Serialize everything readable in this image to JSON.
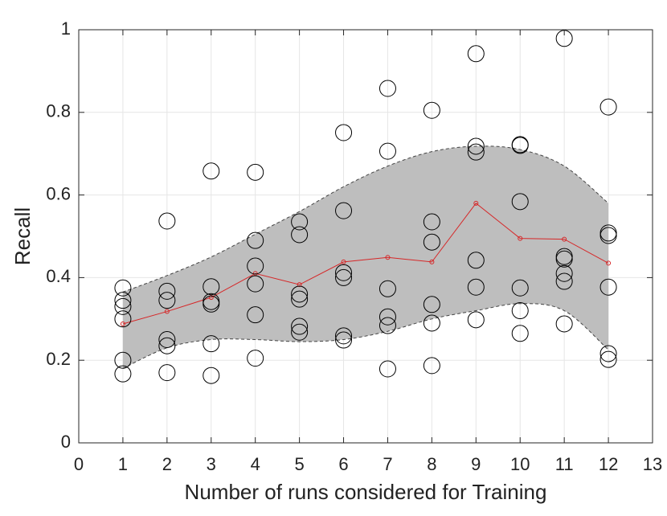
{
  "chart_data": {
    "type": "scatter",
    "x_label": "Number of runs considered for Training",
    "y_label": "Recall",
    "xlim": [
      0,
      13
    ],
    "ylim": [
      0,
      1
    ],
    "xticks": [
      0,
      1,
      2,
      3,
      4,
      5,
      6,
      7,
      8,
      9,
      10,
      11,
      12,
      13
    ],
    "yticks": [
      0,
      0.2,
      0.4,
      0.6,
      0.8,
      1
    ],
    "grid": true,
    "points": {
      "color": "#000000",
      "x": [
        1,
        1,
        1,
        1,
        1,
        1,
        2,
        2,
        2,
        2,
        2,
        2,
        3,
        3,
        3,
        3,
        3,
        3,
        4,
        4,
        4,
        4,
        4,
        4,
        5,
        5,
        5,
        5,
        5,
        5,
        6,
        6,
        6,
        6,
        6,
        6,
        7,
        7,
        7,
        7,
        7,
        7,
        8,
        8,
        8,
        8,
        8,
        8,
        9,
        9,
        9,
        9,
        9,
        9,
        10,
        10,
        10,
        10,
        10,
        10,
        11,
        11,
        11,
        11,
        11,
        11,
        12,
        12,
        12,
        12,
        12,
        12
      ],
      "y": [
        0.375,
        0.345,
        0.33,
        0.3,
        0.2,
        0.167,
        0.537,
        0.367,
        0.345,
        0.25,
        0.235,
        0.17,
        0.658,
        0.378,
        0.342,
        0.336,
        0.24,
        0.163,
        0.655,
        0.49,
        0.428,
        0.385,
        0.31,
        0.205,
        0.535,
        0.504,
        0.36,
        0.348,
        0.282,
        0.268,
        0.751,
        0.562,
        0.412,
        0.4,
        0.259,
        0.249,
        0.858,
        0.706,
        0.373,
        0.305,
        0.284,
        0.179,
        0.805,
        0.535,
        0.486,
        0.335,
        0.29,
        0.187,
        0.942,
        0.718,
        0.704,
        0.442,
        0.377,
        0.298,
        0.722,
        0.72,
        0.584,
        0.375,
        0.32,
        0.265,
        0.979,
        0.451,
        0.445,
        0.41,
        0.391,
        0.288,
        0.813,
        0.508,
        0.502,
        0.377,
        0.216,
        0.202
      ]
    },
    "mean": {
      "color": "#d62728",
      "x": [
        1,
        2,
        3,
        4,
        5,
        6,
        7,
        8,
        9,
        10,
        11,
        12
      ],
      "values": [
        0.288,
        0.318,
        0.352,
        0.41,
        0.383,
        0.438,
        0.449,
        0.438,
        0.58,
        0.495,
        0.493,
        0.435
      ]
    },
    "band": {
      "color": "#bebebe",
      "x": [
        1,
        2,
        3,
        4,
        5,
        6,
        7,
        8,
        9,
        10,
        11,
        12
      ],
      "upper": [
        0.365,
        0.405,
        0.45,
        0.505,
        0.56,
        0.62,
        0.67,
        0.705,
        0.718,
        0.71,
        0.67,
        0.58
      ],
      "lower": [
        0.18,
        0.23,
        0.25,
        0.25,
        0.245,
        0.25,
        0.27,
        0.3,
        0.32,
        0.337,
        0.32,
        0.225
      ]
    }
  }
}
